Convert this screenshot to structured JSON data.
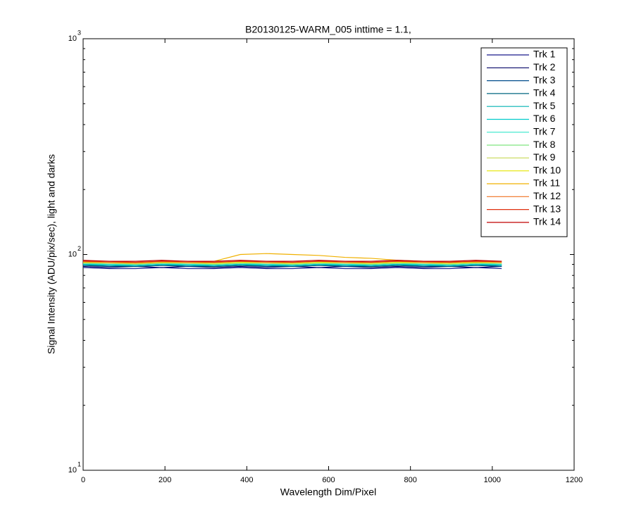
{
  "chart_data": {
    "type": "line",
    "title": "B20130125-WARM_005 inttime = 1.1,",
    "x_label": "Wavelength Dim/Pixel",
    "y_label": "Signal Intensity (ADU/pix/sec), light and darks",
    "x": [
      0,
      64,
      128,
      192,
      256,
      320,
      384,
      448,
      512,
      576,
      640,
      704,
      768,
      832,
      896,
      960,
      1023
    ],
    "xlim": [
      0,
      1200
    ],
    "xticks": [
      0,
      200,
      400,
      600,
      800,
      1000,
      1200
    ],
    "ylim": [
      10,
      1000
    ],
    "log_y": true,
    "yticks": [
      {
        "value": 10,
        "label": "10",
        "exponent": "1"
      },
      {
        "value": 100,
        "label": "10",
        "exponent": "2"
      },
      {
        "value": 1000,
        "label": "10",
        "exponent": "3"
      }
    ],
    "legend": "upper right",
    "series": [
      {
        "name": "Trk 1",
        "color": "#1a1a8c",
        "values": [
          87,
          86,
          86,
          87,
          86,
          86,
          87,
          86,
          86,
          87,
          86,
          86,
          87,
          86,
          86,
          87,
          86
        ]
      },
      {
        "name": "Trk 2",
        "color": "#000066",
        "values": [
          88,
          87,
          88,
          87,
          88,
          87,
          88,
          87,
          88,
          87,
          88,
          87,
          88,
          87,
          88,
          87,
          88
        ]
      },
      {
        "name": "Trk 3",
        "color": "#004c8c",
        "values": [
          89,
          88,
          88,
          89,
          88,
          88,
          89,
          88,
          88,
          89,
          88,
          88,
          89,
          88,
          88,
          89,
          88
        ]
      },
      {
        "name": "Trk 4",
        "color": "#006680",
        "values": [
          89,
          89,
          88,
          89,
          89,
          88,
          89,
          89,
          88,
          89,
          89,
          88,
          89,
          89,
          88,
          89,
          89
        ]
      },
      {
        "name": "Trk 5",
        "color": "#00b3b3",
        "values": [
          90,
          89,
          89,
          90,
          89,
          89,
          90,
          89,
          89,
          90,
          89,
          89,
          90,
          89,
          89,
          90,
          89
        ]
      },
      {
        "name": "Trk 6",
        "color": "#00cccc",
        "values": [
          90,
          90,
          89,
          90,
          90,
          89,
          90,
          90,
          89,
          90,
          90,
          89,
          90,
          90,
          89,
          90,
          90
        ]
      },
      {
        "name": "Trk 7",
        "color": "#33e6cc",
        "values": [
          91,
          90,
          90,
          91,
          90,
          90,
          91,
          90,
          90,
          91,
          90,
          90,
          91,
          90,
          90,
          91,
          90
        ]
      },
      {
        "name": "Trk 8",
        "color": "#80e680",
        "values": [
          91,
          91,
          90,
          91,
          91,
          90,
          91,
          91,
          90,
          91,
          91,
          90,
          91,
          91,
          90,
          91,
          91
        ]
      },
      {
        "name": "Trk 9",
        "color": "#ccdd66",
        "values": [
          92,
          91,
          91,
          92,
          91,
          91,
          92,
          91,
          91,
          92,
          91,
          91,
          92,
          91,
          91,
          92,
          91
        ]
      },
      {
        "name": "Trk 10",
        "color": "#e6e600",
        "values": [
          92,
          92,
          91,
          92,
          92,
          91,
          92,
          92,
          91,
          92,
          92,
          91,
          92,
          92,
          91,
          92,
          92
        ]
      },
      {
        "name": "Trk 11",
        "color": "#f0b000",
        "values": [
          92,
          92,
          91,
          92,
          92,
          93,
          100,
          101,
          100,
          99,
          97,
          96,
          94,
          93,
          93,
          92,
          93
        ]
      },
      {
        "name": "Trk 12",
        "color": "#f07020",
        "values": [
          93,
          92,
          92,
          93,
          92,
          92,
          93,
          92,
          92,
          93,
          92,
          92,
          93,
          92,
          92,
          93,
          92
        ]
      },
      {
        "name": "Trk 13",
        "color": "#e03010",
        "values": [
          93,
          93,
          92,
          93,
          93,
          92,
          93,
          93,
          92,
          93,
          93,
          92,
          93,
          93,
          92,
          93,
          93
        ]
      },
      {
        "name": "Trk 14",
        "color": "#c00000",
        "values": [
          94,
          93,
          93,
          94,
          93,
          93,
          94,
          93,
          93,
          94,
          93,
          93,
          94,
          93,
          93,
          94,
          93
        ]
      }
    ]
  }
}
